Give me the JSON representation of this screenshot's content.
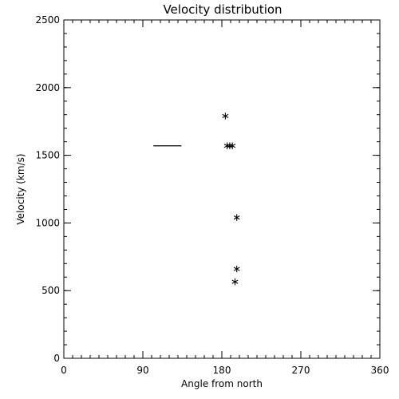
{
  "chart_data": {
    "type": "scatter",
    "title": "Velocity distribution",
    "xlabel": "Angle from north",
    "ylabel": "Velocity (km/s)",
    "xlim": [
      0,
      360
    ],
    "ylim": [
      0,
      2500
    ],
    "x_ticks": [
      {
        "value": 0,
        "label": "0"
      },
      {
        "value": 90,
        "label": "90"
      },
      {
        "value": 180,
        "label": "180"
      },
      {
        "value": 270,
        "label": "270"
      },
      {
        "value": 360,
        "label": "360"
      }
    ],
    "y_ticks": [
      {
        "value": 0,
        "label": "0"
      },
      {
        "value": 500,
        "label": "500"
      },
      {
        "value": 1000,
        "label": "1000"
      },
      {
        "value": 1500,
        "label": "1500"
      },
      {
        "value": 2000,
        "label": "2000"
      },
      {
        "value": 2500,
        "label": "2500"
      }
    ],
    "x_minor_step": 10,
    "y_minor_step": 100,
    "grid": false,
    "marker": "asterisk",
    "points": [
      {
        "x": 184,
        "y": 1790
      },
      {
        "x": 186,
        "y": 1570
      },
      {
        "x": 189,
        "y": 1570
      },
      {
        "x": 192,
        "y": 1570
      },
      {
        "x": 195,
        "y": 565
      },
      {
        "x": 197,
        "y": 1040
      },
      {
        "x": 197,
        "y": 660
      }
    ],
    "segments": [
      {
        "x1": 102,
        "x2": 134,
        "y": 1570
      }
    ]
  }
}
